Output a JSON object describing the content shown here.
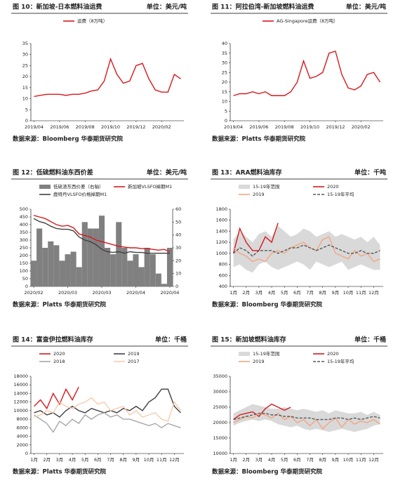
{
  "chart_data": [
    {
      "type": "line",
      "title": "图 10：新加坡-日本燃料油运费",
      "unit": "单位：美元/吨",
      "source": "数据来源：Bloomberg 华泰期货研究院",
      "categories": [
        "2019/04",
        null,
        null,
        null,
        "2019/06",
        null,
        null,
        null,
        "2019/08",
        null,
        null,
        null,
        "2019/10",
        null,
        null,
        null,
        "2019/12",
        null,
        null,
        null,
        "2020/02",
        null,
        null,
        null
      ],
      "ylim": [
        0,
        35
      ],
      "yticks": [
        0,
        5,
        10,
        15,
        20,
        25,
        30,
        35
      ],
      "series": [
        {
          "name": "运费（8万吨）",
          "color": "#d7191c",
          "values": [
            11,
            11.5,
            12,
            12,
            12,
            11.5,
            12,
            12,
            12.5,
            13.5,
            14,
            18,
            28,
            21,
            17,
            18,
            25,
            26,
            19,
            14,
            13,
            13,
            21,
            19
          ]
        }
      ]
    },
    {
      "type": "line",
      "title": "图 11：阿拉伯湾-新加坡燃料油运费",
      "unit": "单位：美元/吨",
      "source": "数据来源：Platts 华泰期货研究院",
      "categories": [
        "2019/04",
        null,
        null,
        null,
        "2019/06",
        null,
        null,
        null,
        "2019/08",
        null,
        null,
        null,
        "2019/10",
        null,
        null,
        null,
        "2019/12",
        null,
        null,
        null,
        "2020/02",
        null,
        null,
        null
      ],
      "ylim": [
        0,
        40
      ],
      "yticks": [
        0,
        5,
        10,
        15,
        20,
        25,
        30,
        35,
        40
      ],
      "series": [
        {
          "name": "AG-Singapore运费（8万吨）",
          "color": "#d7191c",
          "values": [
            13,
            14,
            14,
            15,
            14,
            15,
            13,
            13,
            13,
            15,
            20,
            31,
            22,
            23,
            25,
            35,
            36,
            24,
            17,
            16,
            18,
            24,
            25,
            20
          ]
        }
      ]
    },
    {
      "type": "line",
      "title": "图 12：低硫燃料油东西价差",
      "unit": "单位：美元/吨",
      "source": "数据来源：Platts 华泰期货研究院",
      "categories": [
        "2020/02",
        null,
        null,
        null,
        null,
        null,
        "2020/03",
        null,
        null,
        null,
        null,
        null,
        "2020/03",
        null,
        null,
        null,
        null,
        null,
        "2020/04",
        null,
        null,
        null,
        null,
        null,
        "2020/04"
      ],
      "ylim": [
        0,
        500
      ],
      "yticks": [
        0,
        50,
        100,
        150,
        200,
        250,
        300,
        350,
        400,
        450,
        500
      ],
      "y2lim": [
        0,
        60
      ],
      "y2ticks": [
        0,
        10,
        20,
        30,
        40,
        50,
        60
      ],
      "series": [
        {
          "name": "低硫渣东西价差（右轴）",
          "type": "bar",
          "axis": "y2",
          "color": "#808080",
          "values": [
            20,
            45,
            30,
            35,
            32,
            20,
            25,
            27,
            15,
            50,
            45,
            45,
            55,
            30,
            25,
            50,
            30,
            20,
            25,
            15,
            30,
            25,
            10,
            2,
            30
          ]
        },
        {
          "name": "新加坡VLSFO掉期M1",
          "color": "#d7191c",
          "values": [
            460,
            450,
            440,
            420,
            400,
            390,
            395,
            380,
            340,
            330,
            320,
            300,
            290,
            280,
            270,
            260,
            255,
            250,
            250,
            245,
            245,
            240,
            235,
            240,
            225
          ]
        },
        {
          "name": "鹿特丹VLSFO价格掉期M1",
          "color": "#404040",
          "values": [
            440,
            420,
            410,
            390,
            375,
            370,
            370,
            360,
            320,
            300,
            290,
            270,
            240,
            225,
            220,
            225,
            215,
            225,
            220,
            220,
            215,
            215,
            215,
            215,
            215
          ]
        }
      ]
    },
    {
      "type": "line",
      "title": "图 13：ARA燃料油库存",
      "unit": "单位：千吨",
      "source": "数据来源：Bloomberg 华泰期货研究院",
      "categories": [
        "1月",
        null,
        "2月",
        null,
        "3月",
        null,
        "4月",
        null,
        "5月",
        null,
        "6月",
        null,
        "7月",
        null,
        "8月",
        null,
        "9月",
        null,
        "10月",
        null,
        "11月",
        null,
        "12月",
        null
      ],
      "ylim": [
        400,
        1800
      ],
      "yticks": [
        400,
        600,
        800,
        1000,
        1200,
        1400,
        1600,
        1800
      ],
      "series": [
        {
          "name": "15-19年范围",
          "type": "range",
          "color": "#d9d9d9",
          "high": [
            1250,
            1400,
            1300,
            1200,
            1350,
            1400,
            1300,
            1500,
            1400,
            1300,
            1350,
            1450,
            1400,
            1300,
            1350,
            1400,
            1300,
            1350,
            1300,
            1250,
            1300,
            1200,
            1300,
            1150
          ],
          "low": [
            750,
            800,
            700,
            650,
            800,
            850,
            750,
            700,
            750,
            800,
            850,
            800,
            700,
            850,
            800,
            750,
            800,
            850,
            700,
            750,
            800,
            750,
            700,
            700
          ]
        },
        {
          "name": "2020",
          "color": "#d7191c",
          "values": [
            1000,
            1450,
            1200,
            1050,
            1050,
            1300,
            1200,
            1550,
            null,
            null,
            null,
            null,
            null,
            null,
            null,
            null,
            null,
            null,
            null,
            null,
            null,
            null,
            null,
            null
          ]
        },
        {
          "name": "2019",
          "color": "#f4a582",
          "values": [
            1100,
            1000,
            950,
            850,
            900,
            850,
            1000,
            1050,
            1000,
            1100,
            1150,
            1200,
            1100,
            1050,
            1250,
            1300,
            1000,
            950,
            900,
            1050,
            950,
            1000,
            850,
            900
          ]
        },
        {
          "name": "15-19年平均",
          "color": "#595959",
          "dash": true,
          "values": [
            1000,
            1100,
            1050,
            950,
            1050,
            1050,
            1050,
            1000,
            1050,
            1100,
            1100,
            1150,
            1100,
            1050,
            1100,
            1150,
            1100,
            1050,
            1000,
            1000,
            1050,
            1000,
            1000,
            1050
          ]
        }
      ]
    },
    {
      "type": "line",
      "title": "图 14：富查伊拉燃料油库存",
      "unit": "单位：千桶",
      "source": "数据来源：Platts 华泰期货研究院",
      "categories": [
        "1月",
        null,
        "2月",
        null,
        "3月",
        null,
        "4月",
        null,
        "5月",
        null,
        "6月",
        null,
        "7月",
        null,
        "8月",
        null,
        "9月",
        null,
        "10月",
        null,
        "11月",
        null,
        "12月",
        null
      ],
      "ylim": [
        0,
        18000
      ],
      "yticks": [
        0,
        2000,
        4000,
        6000,
        8000,
        10000,
        12000,
        14000,
        16000,
        18000
      ],
      "series": [
        {
          "name": "2020",
          "color": "#d7191c",
          "values": [
            11000,
            12500,
            10500,
            14000,
            11500,
            15000,
            12500,
            15500,
            null,
            null,
            null,
            null,
            null,
            null,
            null,
            null,
            null,
            null,
            null,
            null,
            null,
            null,
            null,
            null
          ]
        },
        {
          "name": "2019",
          "color": "#404040",
          "values": [
            9500,
            10000,
            9000,
            9500,
            8500,
            10000,
            11000,
            10000,
            9500,
            10500,
            10000,
            9500,
            10000,
            9500,
            10500,
            10000,
            11000,
            10000,
            12000,
            13000,
            15000,
            15000,
            11000,
            9500
          ]
        },
        {
          "name": "2018",
          "color": "#a6a6a6",
          "values": [
            9000,
            8000,
            7000,
            5000,
            7500,
            6500,
            8000,
            7000,
            9000,
            8000,
            9000,
            9500,
            8500,
            9000,
            8000,
            8000,
            7500,
            7000,
            6500,
            7000,
            6000,
            7000,
            6500,
            6000
          ]
        },
        {
          "name": "2017",
          "color": "#f8cbad",
          "values": [
            8500,
            9000,
            10000,
            9500,
            12000,
            11000,
            10500,
            11500,
            12000,
            13000,
            11500,
            12000,
            10000,
            10500,
            11000,
            9000,
            10000,
            8500,
            9000,
            9500,
            8000,
            7500,
            12000,
            10000
          ]
        }
      ]
    },
    {
      "type": "line",
      "title": "图 15：新加坡燃料油库存",
      "unit": "单位：千桶",
      "source": "数据来源：Bloomberg 华泰期货研究院",
      "categories": [
        "1月",
        null,
        "2月",
        null,
        "3月",
        null,
        "4月",
        null,
        "5月",
        null,
        "6月",
        null,
        "7月",
        null,
        "8月",
        null,
        "9月",
        null,
        "10月",
        null,
        "11月",
        null,
        "12月",
        null
      ],
      "ylim": [
        10000,
        35000
      ],
      "yticks": [
        10000,
        15000,
        20000,
        25000,
        30000,
        35000
      ],
      "series": [
        {
          "name": "15-19年范围",
          "type": "range",
          "color": "#d9d9d9",
          "high": [
            23000,
            24000,
            25000,
            26000,
            25500,
            25000,
            24500,
            24500,
            25000,
            24500,
            24000,
            24500,
            24000,
            23500,
            24000,
            23000,
            24000,
            23500,
            23000,
            23000,
            23500,
            22500,
            23500,
            22500
          ],
          "low": [
            19000,
            20000,
            20500,
            21000,
            20500,
            21000,
            20500,
            19500,
            19000,
            18500,
            19000,
            18000,
            17500,
            18000,
            17500,
            17000,
            17500,
            18000,
            17500,
            17000,
            17500,
            18000,
            19000,
            19500
          ]
        },
        {
          "name": "2020",
          "color": "#d7191c",
          "values": [
            21000,
            22500,
            23000,
            23500,
            22000,
            24500,
            26000,
            25000,
            24000,
            25000,
            null,
            null,
            null,
            null,
            null,
            null,
            null,
            null,
            null,
            null,
            null,
            null,
            null,
            null
          ]
        },
        {
          "name": "2019",
          "color": "#f4a582",
          "values": [
            20000,
            21000,
            22000,
            21500,
            23000,
            22500,
            21500,
            23000,
            21000,
            22000,
            20000,
            21000,
            19000,
            21000,
            18000,
            20000,
            21500,
            18500,
            21000,
            19500,
            20500,
            20000,
            21000,
            19500
          ]
        },
        {
          "name": "15-19年平均",
          "color": "#595959",
          "dash": true,
          "values": [
            21000,
            21500,
            22000,
            22500,
            23000,
            23000,
            22500,
            22500,
            22000,
            22000,
            21500,
            21500,
            21500,
            21000,
            21000,
            21000,
            21500,
            21500,
            21000,
            21500,
            21000,
            21500,
            22000,
            21500
          ]
        }
      ]
    }
  ]
}
